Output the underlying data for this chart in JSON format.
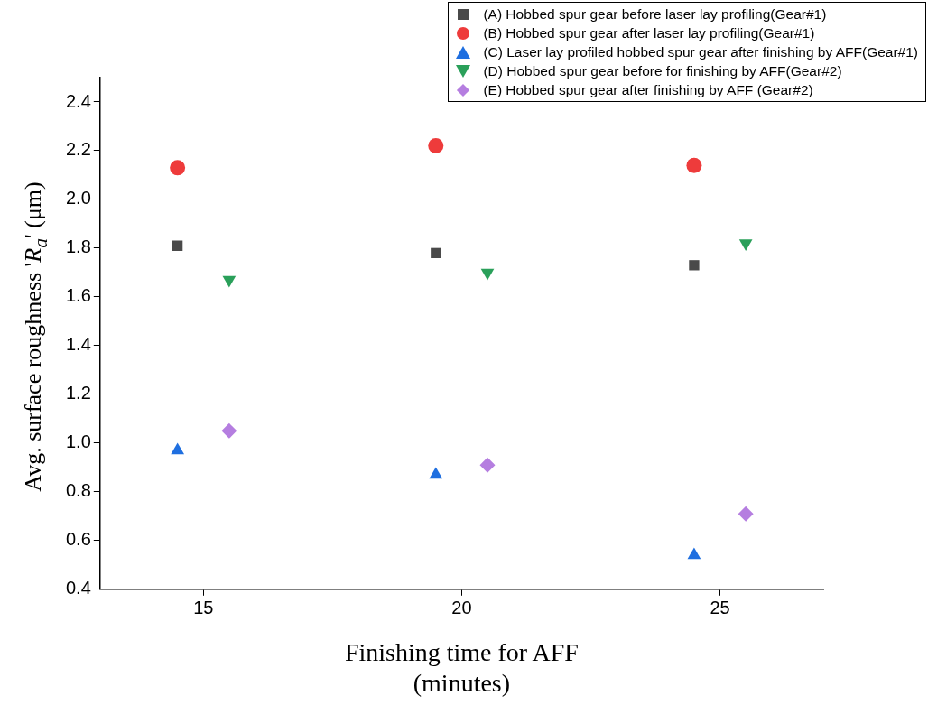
{
  "chart_data": {
    "type": "scatter",
    "xlabel": "Finishing time for AFF\n(minutes)",
    "ylabel": "Avg. surface roughness 'R$_{a}$' (μm)",
    "xlim": [
      13,
      27
    ],
    "xticks": [
      15,
      20,
      25
    ],
    "ylim": [
      0.4,
      2.5
    ],
    "yticks": [
      0.4,
      0.6,
      0.8,
      {
        "value": 1,
        "label": "1.0"
      },
      1.2,
      1.4,
      1.6,
      1.8,
      {
        "value": 2,
        "label": "2.0"
      },
      2.2,
      2.4
    ],
    "grid": false,
    "legend": "top right",
    "series": [
      {
        "name": "(A) Hobbed spur gear before laser lay profiling(Gear#1)",
        "color": "#4a4a4a",
        "marker": "square",
        "x": [
          14.5,
          19.5,
          24.5
        ],
        "values": [
          1.81,
          1.78,
          1.73
        ]
      },
      {
        "name": "(B) Hobbed spur gear after laser lay profiling(Gear#1)",
        "color": "#ee3b3b",
        "marker": "circle",
        "x": [
          14.5,
          19.5,
          24.5
        ],
        "values": [
          2.13,
          2.22,
          2.14
        ]
      },
      {
        "name": "(C) Laser lay profiled hobbed spur gear after finishing by AFF(Gear#1)",
        "color": "#1f6fe0",
        "marker": "triangle",
        "x": [
          14.5,
          19.5,
          24.5
        ],
        "values": [
          0.97,
          0.87,
          0.54
        ]
      },
      {
        "name": "(D) Hobbed spur gear before for finishing by AFF(Gear#2)",
        "color": "#2aa05a",
        "marker": "triangle-down",
        "x": [
          15.5,
          20.5,
          25.5
        ],
        "values": [
          1.67,
          1.7,
          1.82
        ]
      },
      {
        "name": "(E) Hobbed spur gear after finishing by AFF (Gear#2)",
        "color": "#b57ee0",
        "marker": "diamond",
        "x": [
          15.5,
          20.5,
          25.5
        ],
        "values": [
          1.05,
          0.91,
          0.71
        ]
      }
    ]
  }
}
